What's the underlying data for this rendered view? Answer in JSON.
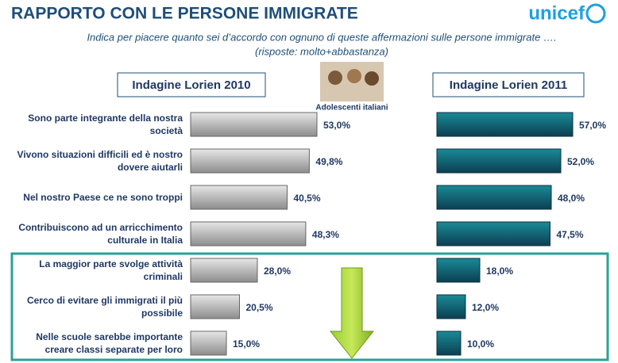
{
  "chart_data": {
    "type": "bar",
    "orientation": "horizontal",
    "title": "RAPPORTO CON LE PERSONE IMMIGRATE",
    "subtitle": [
      "Indica per piacere quanto sei d’accordo con ognuno di queste affermazioni sulle persone immigrate ….",
      "(risposte: molto+abbastanza)"
    ],
    "logo": "unicef",
    "annotation": "Adolescenti italiani",
    "categories": [
      "Sono parte integrante della nostra società",
      "Vivono situazioni difficili ed è nostro dovere aiutarli",
      "Nel nostro Paese ce ne sono troppi",
      "Contribuiscono ad un arricchimento culturale in Italia",
      "La maggior parte svolge attività criminali",
      "Cerco di evitare gli immigrati il più possibile",
      "Nelle scuole sarebbe importante creare classi separate per loro"
    ],
    "series": [
      {
        "name": "Indagine Lorien 2010",
        "color": "#a6a6a6",
        "values": [
          53.0,
          49.8,
          40.5,
          48.3,
          28.0,
          20.5,
          15.0
        ],
        "value_labels": [
          "53,0%",
          "49,8%",
          "40,5%",
          "48,3%",
          "28,0%",
          "20,5%",
          "15,0%"
        ]
      },
      {
        "name": "Indagine Lorien 2011",
        "color": "#17707c",
        "values": [
          57.0,
          52.0,
          48.0,
          47.5,
          18.0,
          12.0,
          10.0
        ],
        "value_labels": [
          "57,0%",
          "52,0%",
          "48,0%",
          "47,5%",
          "18,0%",
          "12,0%",
          "10,0%"
        ]
      }
    ]
  }
}
